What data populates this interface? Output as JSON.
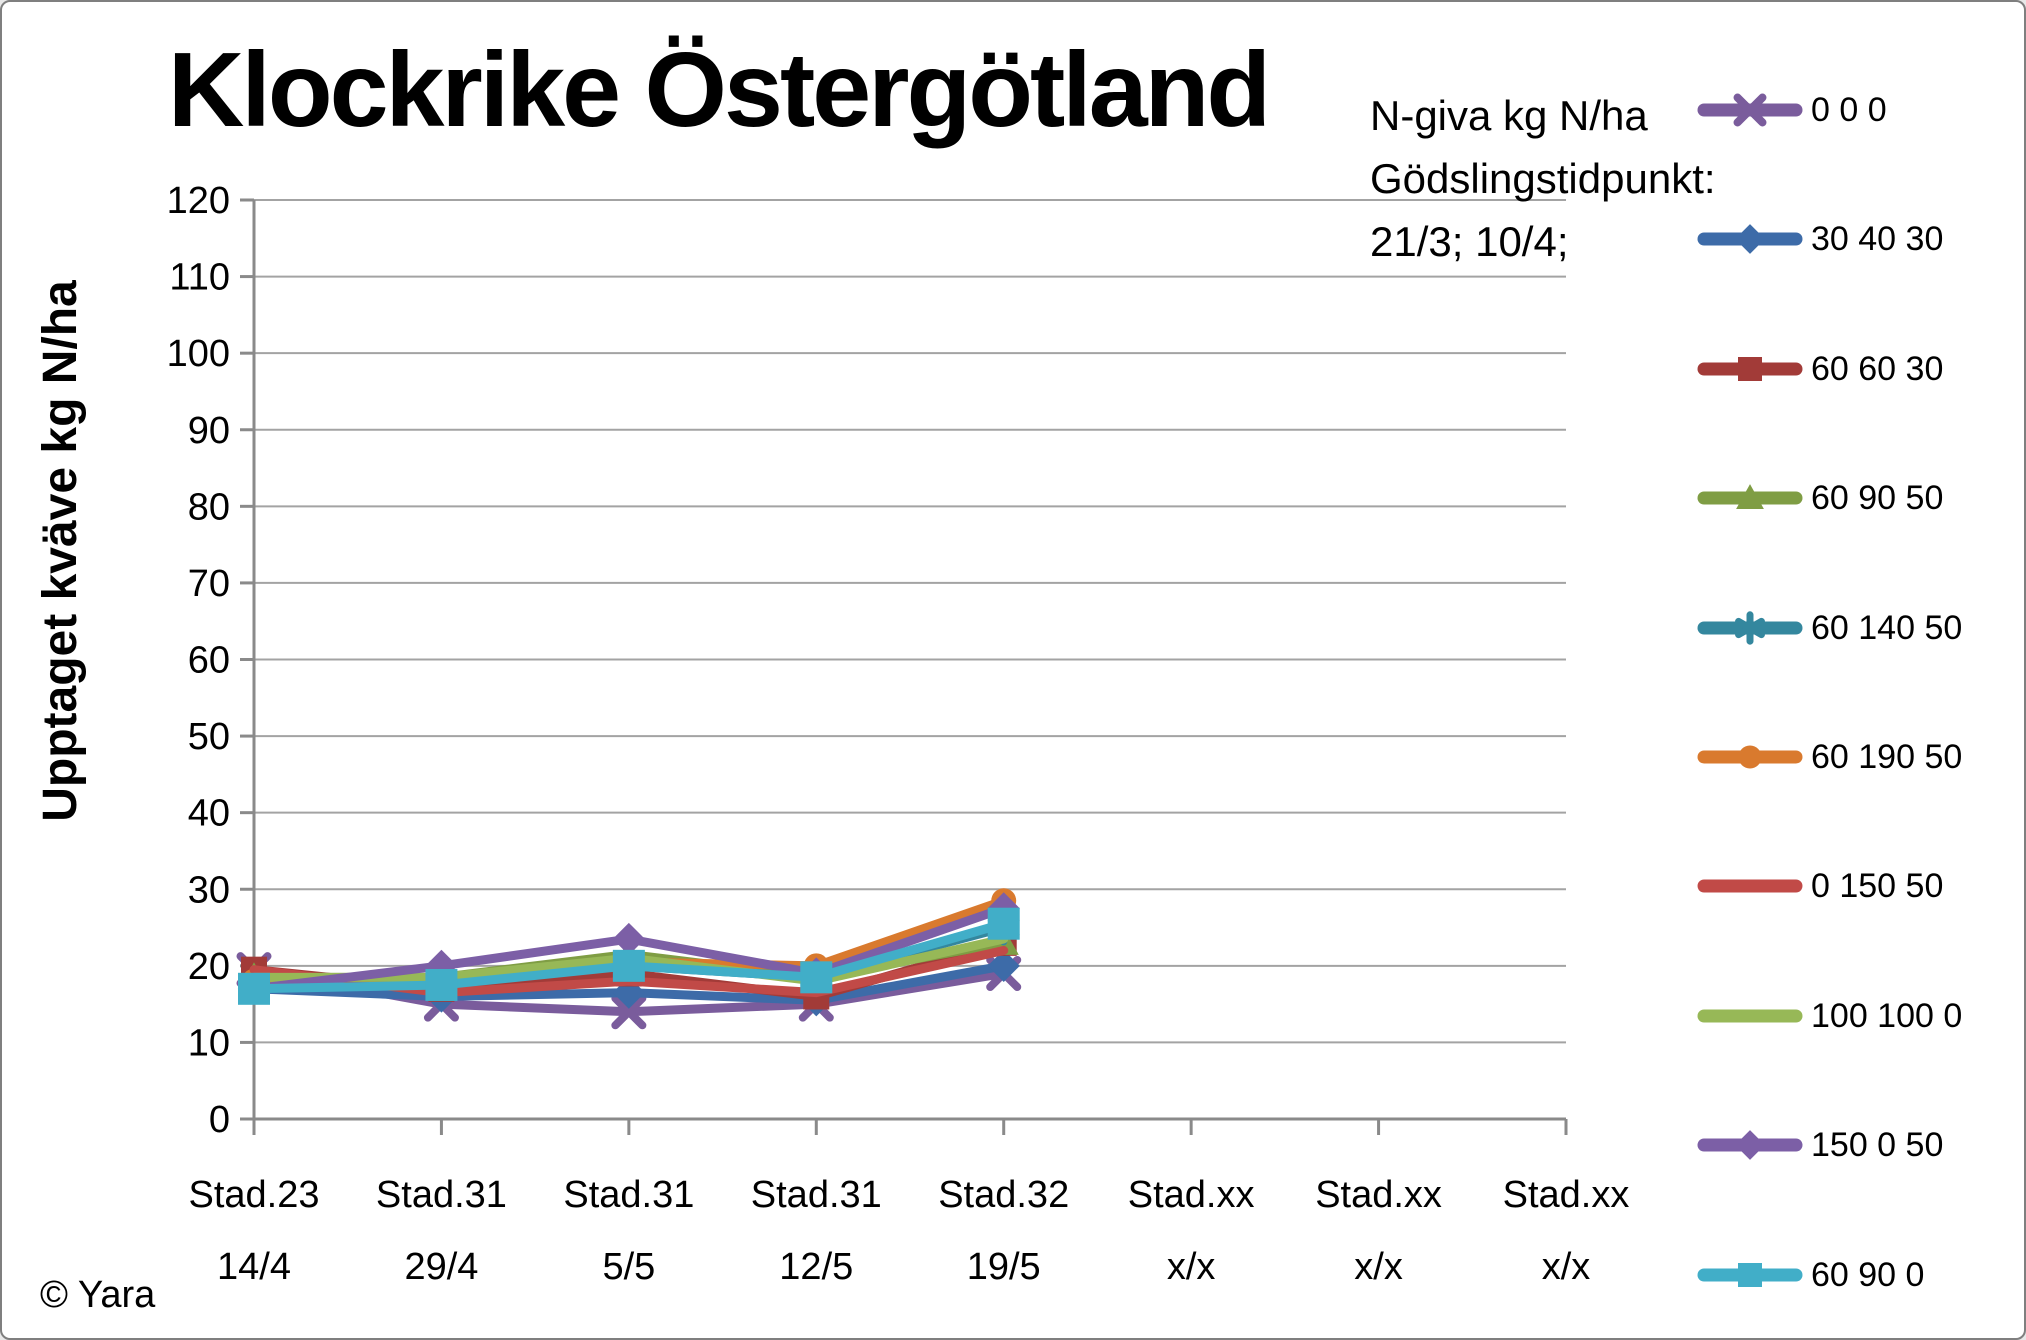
{
  "title": "Klockrike Östergötland",
  "copyright": "© Yara",
  "legend_header": {
    "line1": "N-giva kg N/ha",
    "line2": "Gödslingstidpunkt:",
    "line3": "21/3; 10/4;"
  },
  "chart_data": {
    "type": "line",
    "title": "Klockrike Östergötland",
    "xlabel": "",
    "ylabel": "Upptaget kväve kg N/ha",
    "ylim": [
      0,
      120
    ],
    "yticks": [
      0,
      10,
      20,
      30,
      40,
      50,
      60,
      70,
      80,
      90,
      100,
      110,
      120
    ],
    "grid": true,
    "legend_position": "right",
    "legend_title_lines": [
      "N-giva kg N/ha",
      "Gödslingstidpunkt:",
      "21/3; 10/4;"
    ],
    "categories": [
      {
        "stage": "Stad.23",
        "date": "14/4"
      },
      {
        "stage": "Stad.31",
        "date": "29/4"
      },
      {
        "stage": "Stad.31",
        "date": "5/5"
      },
      {
        "stage": "Stad.31",
        "date": "12/5"
      },
      {
        "stage": "Stad.32",
        "date": "19/5"
      },
      {
        "stage": "Stad.xx",
        "date": "x/x"
      },
      {
        "stage": "Stad.xx",
        "date": "x/x"
      },
      {
        "stage": "Stad.xx",
        "date": "x/x"
      }
    ],
    "series": [
      {
        "name": "0 0 0",
        "color": "#7A5C9C",
        "marker": "x",
        "values": [
          19.5,
          15,
          14,
          15,
          19
        ]
      },
      {
        "name": "30 40 30",
        "color": "#3D6BA8",
        "marker": "diamond",
        "values": [
          17,
          16,
          16.5,
          15.5,
          20
        ]
      },
      {
        "name": "60 60 30",
        "color": "#A23B38",
        "marker": "square",
        "values": [
          19.5,
          17,
          19,
          16,
          23
        ]
      },
      {
        "name": "60 90 50",
        "color": "#7F9D44",
        "marker": "triangle",
        "values": [
          18.5,
          18.5,
          21.5,
          18.5,
          23
        ]
      },
      {
        "name": "60 140 50",
        "color": "#34879E",
        "marker": "asterisk",
        "values": [
          17.5,
          18,
          20,
          18.5,
          25
        ]
      },
      {
        "name": "60 190 50",
        "color": "#D97A2E",
        "marker": "circle",
        "values": [
          18,
          18,
          20.5,
          20,
          28.5
        ]
      },
      {
        "name": "0 150 50",
        "color": "#C14A47",
        "marker": "none",
        "values": [
          19.5,
          16.5,
          18,
          16.5,
          22
        ]
      },
      {
        "name": "100 100 0",
        "color": "#97B857",
        "marker": "none",
        "values": [
          18.5,
          18.5,
          21,
          18,
          23.5
        ]
      },
      {
        "name": "150 0 50",
        "color": "#7C5FA6",
        "marker": "diamond",
        "values": [
          17,
          20,
          23.5,
          19,
          27.5
        ]
      },
      {
        "name": "60 90 0",
        "color": "#41AEC8",
        "marker": "square",
        "values": [
          17,
          17.5,
          20,
          18.5,
          25.5
        ]
      }
    ],
    "axis_color": "#8a8a8a",
    "grid_color": "#a3a3a3"
  }
}
